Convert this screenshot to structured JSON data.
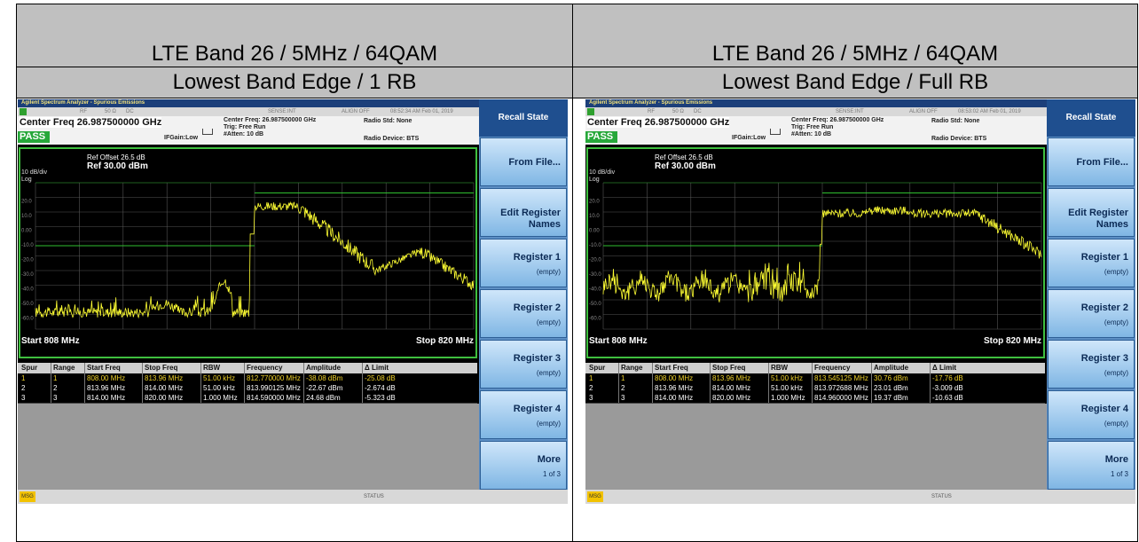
{
  "panels": [
    {
      "title": "LTE Band 26 / 5MHz / 64QAM",
      "subtitle": "Lowest Band Edge / 1 RB",
      "screen": {
        "app_title": "Agilent Spectrum Analyzer - Spurious Emissions",
        "status": [
          "RF",
          "50 Ω",
          "DC",
          "SENSE:INT",
          "ALIGN OFF",
          "08:52:34 AM Feb 01, 2019"
        ],
        "center_freq": "Center Freq 26.987500000 GHz",
        "verdict": "PASS",
        "if_gain": "IFGain:Low",
        "settings": [
          "Center Freq: 26.987500000 GHz",
          "Trig: Free Run",
          "#Atten: 10 dB"
        ],
        "radio": [
          "Radio Std: None",
          "Radio Device: BTS"
        ],
        "ref_offset": "Ref Offset 26.5 dB",
        "scale": "10 dB/div",
        "ref_level": "Ref 30.00 dBm",
        "log": "Log",
        "y_labels": [
          "20.0",
          "10.0",
          "0.00",
          "-10.0",
          "-20.0",
          "-30.0",
          "-40.0",
          "-50.0",
          "-60.0"
        ],
        "start": "Start 808 MHz",
        "stop": "Stop 820 MHz",
        "table": {
          "columns": [
            "Spur",
            "Range",
            "Start Freq",
            "Stop Freq",
            "RBW",
            "Frequency",
            "Amplitude",
            "Δ Limit"
          ],
          "rows": [
            [
              "1",
              "1",
              "808.00 MHz",
              "813.96 MHz",
              "51.00 kHz",
              "812.770000 MHz",
              "-38.08 dBm",
              "-25.08 dB"
            ],
            [
              "2",
              "2",
              "813.96 MHz",
              "814.00 MHz",
              "51.00 kHz",
              "813.990125 MHz",
              "-22.67 dBm",
              "-2.674 dB"
            ],
            [
              "3",
              "3",
              "814.00 MHz",
              "820.00 MHz",
              "1.000 MHz",
              "814.590000 MHz",
              "24.68 dBm",
              "-5.323 dB"
            ]
          ]
        },
        "softkeys": [
          {
            "label": "Recall State"
          },
          {
            "label": "From File..."
          },
          {
            "label": "Edit Register Names"
          },
          {
            "label": "Register 1",
            "note": "(empty)"
          },
          {
            "label": "Register 2",
            "note": "(empty)"
          },
          {
            "label": "Register 3",
            "note": "(empty)"
          },
          {
            "label": "Register 4",
            "note": "(empty)"
          },
          {
            "label": "More",
            "note": "1 of 3"
          }
        ],
        "msg": "MSG",
        "status_bar": "STATUS"
      }
    },
    {
      "title": "LTE Band 26 / 5MHz / 64QAM",
      "subtitle": "Lowest Band Edge / Full RB",
      "screen": {
        "app_title": "Agilent Spectrum Analyzer - Spurious Emissions",
        "status": [
          "RF",
          "50 Ω",
          "DC",
          "SENSE:INT",
          "ALIGN OFF",
          "08:53:02 AM Feb 01, 2019"
        ],
        "center_freq": "Center Freq 26.987500000 GHz",
        "verdict": "PASS",
        "if_gain": "IFGain:Low",
        "settings": [
          "Center Freq: 26.987500000 GHz",
          "Trig: Free Run",
          "#Atten: 10 dB"
        ],
        "radio": [
          "Radio Std: None",
          "Radio Device: BTS"
        ],
        "ref_offset": "Ref Offset 26.5 dB",
        "scale": "10 dB/div",
        "ref_level": "Ref 30.00 dBm",
        "log": "Log",
        "y_labels": [
          "20.0",
          "10.0",
          "0.00",
          "-10.0",
          "-20.0",
          "-30.0",
          "-40.0",
          "-50.0",
          "-60.0"
        ],
        "start": "Start 808 MHz",
        "stop": "Stop 820 MHz",
        "table": {
          "columns": [
            "Spur",
            "Range",
            "Start Freq",
            "Stop Freq",
            "RBW",
            "Frequency",
            "Amplitude",
            "Δ Limit"
          ],
          "rows": [
            [
              "1",
              "1",
              "808.00 MHz",
              "813.96 MHz",
              "51.00 kHz",
              "813.545125 MHz",
              "30.76 dBm",
              "-17.76 dB"
            ],
            [
              "2",
              "2",
              "813.96 MHz",
              "814.00 MHz",
              "51.00 kHz",
              "813.972688 MHz",
              "23.01 dBm",
              "-3.009 dB"
            ],
            [
              "3",
              "3",
              "814.00 MHz",
              "820.00 MHz",
              "1.000 MHz",
              "814.960000 MHz",
              "19.37 dBm",
              "-10.63 dB"
            ]
          ]
        },
        "softkeys": [
          {
            "label": "Recall State"
          },
          {
            "label": "From File..."
          },
          {
            "label": "Edit Register Names"
          },
          {
            "label": "Register 1",
            "note": "(empty)"
          },
          {
            "label": "Register 2",
            "note": "(empty)"
          },
          {
            "label": "Register 3",
            "note": "(empty)"
          },
          {
            "label": "Register 4",
            "note": "(empty)"
          },
          {
            "label": "More",
            "note": "1 of 3"
          }
        ],
        "msg": "MSG",
        "status_bar": "STATUS"
      }
    }
  ]
}
